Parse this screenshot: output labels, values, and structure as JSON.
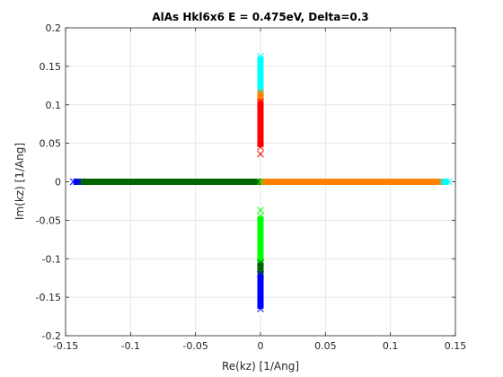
{
  "chart_data": {
    "type": "scatter",
    "title": "AlAs Hkl6x6 E = 0.475eV, Delta=0.3",
    "xlabel": "Re(kz) [1/Ang]",
    "ylabel": "Im(kz) [1/Ang]",
    "xlim": [
      -0.15,
      0.15
    ],
    "ylim": [
      -0.2,
      0.2
    ],
    "grid": true,
    "marker": "x",
    "xticks": [
      -0.15,
      -0.1,
      -0.05,
      0,
      0.05,
      0.1,
      0.15
    ],
    "xtick_labels": [
      "-0.15",
      "-0.1",
      "-0.05",
      "0",
      "0.05",
      "0.1",
      "0.15"
    ],
    "yticks": [
      -0.2,
      -0.15,
      -0.1,
      -0.05,
      0,
      0.05,
      0.1,
      0.15,
      0.2
    ],
    "ytick_labels": [
      "-0.2",
      "-0.15",
      "-0.1",
      "-0.05",
      "0",
      "0.05",
      "0.1",
      "0.15",
      "0.2"
    ],
    "series": [
      {
        "color": "#0000ff",
        "axis": "x",
        "from": -0.144,
        "to": -0.138
      },
      {
        "color": "#006400",
        "axis": "x",
        "from": -0.138,
        "to": 0.0
      },
      {
        "color": "#ff8000",
        "axis": "x",
        "from": 0.0,
        "to": 0.14
      },
      {
        "color": "#00ffff",
        "axis": "x",
        "from": 0.14,
        "to": 0.145
      },
      {
        "color": "#ff0000",
        "axis": "y",
        "from": 0.045,
        "to": 0.108
      },
      {
        "color": "#ff8000",
        "axis": "y",
        "from": 0.108,
        "to": 0.12
      },
      {
        "color": "#00ffff",
        "axis": "y",
        "from": 0.12,
        "to": 0.163
      },
      {
        "color": "#00ff00",
        "axis": "y",
        "from": -0.105,
        "to": -0.045
      },
      {
        "color": "#006400",
        "axis": "y",
        "from": -0.12,
        "to": -0.105
      },
      {
        "color": "#0000ff",
        "axis": "y",
        "from": -0.165,
        "to": -0.12
      }
    ],
    "points": [
      {
        "x": 0.0,
        "y": 0.036,
        "color": "#ff0000"
      },
      {
        "x": 0.0,
        "y": -0.037,
        "color": "#00ff00"
      },
      {
        "x": 0.0,
        "y": 0.0,
        "color": "#00ff00"
      }
    ]
  }
}
